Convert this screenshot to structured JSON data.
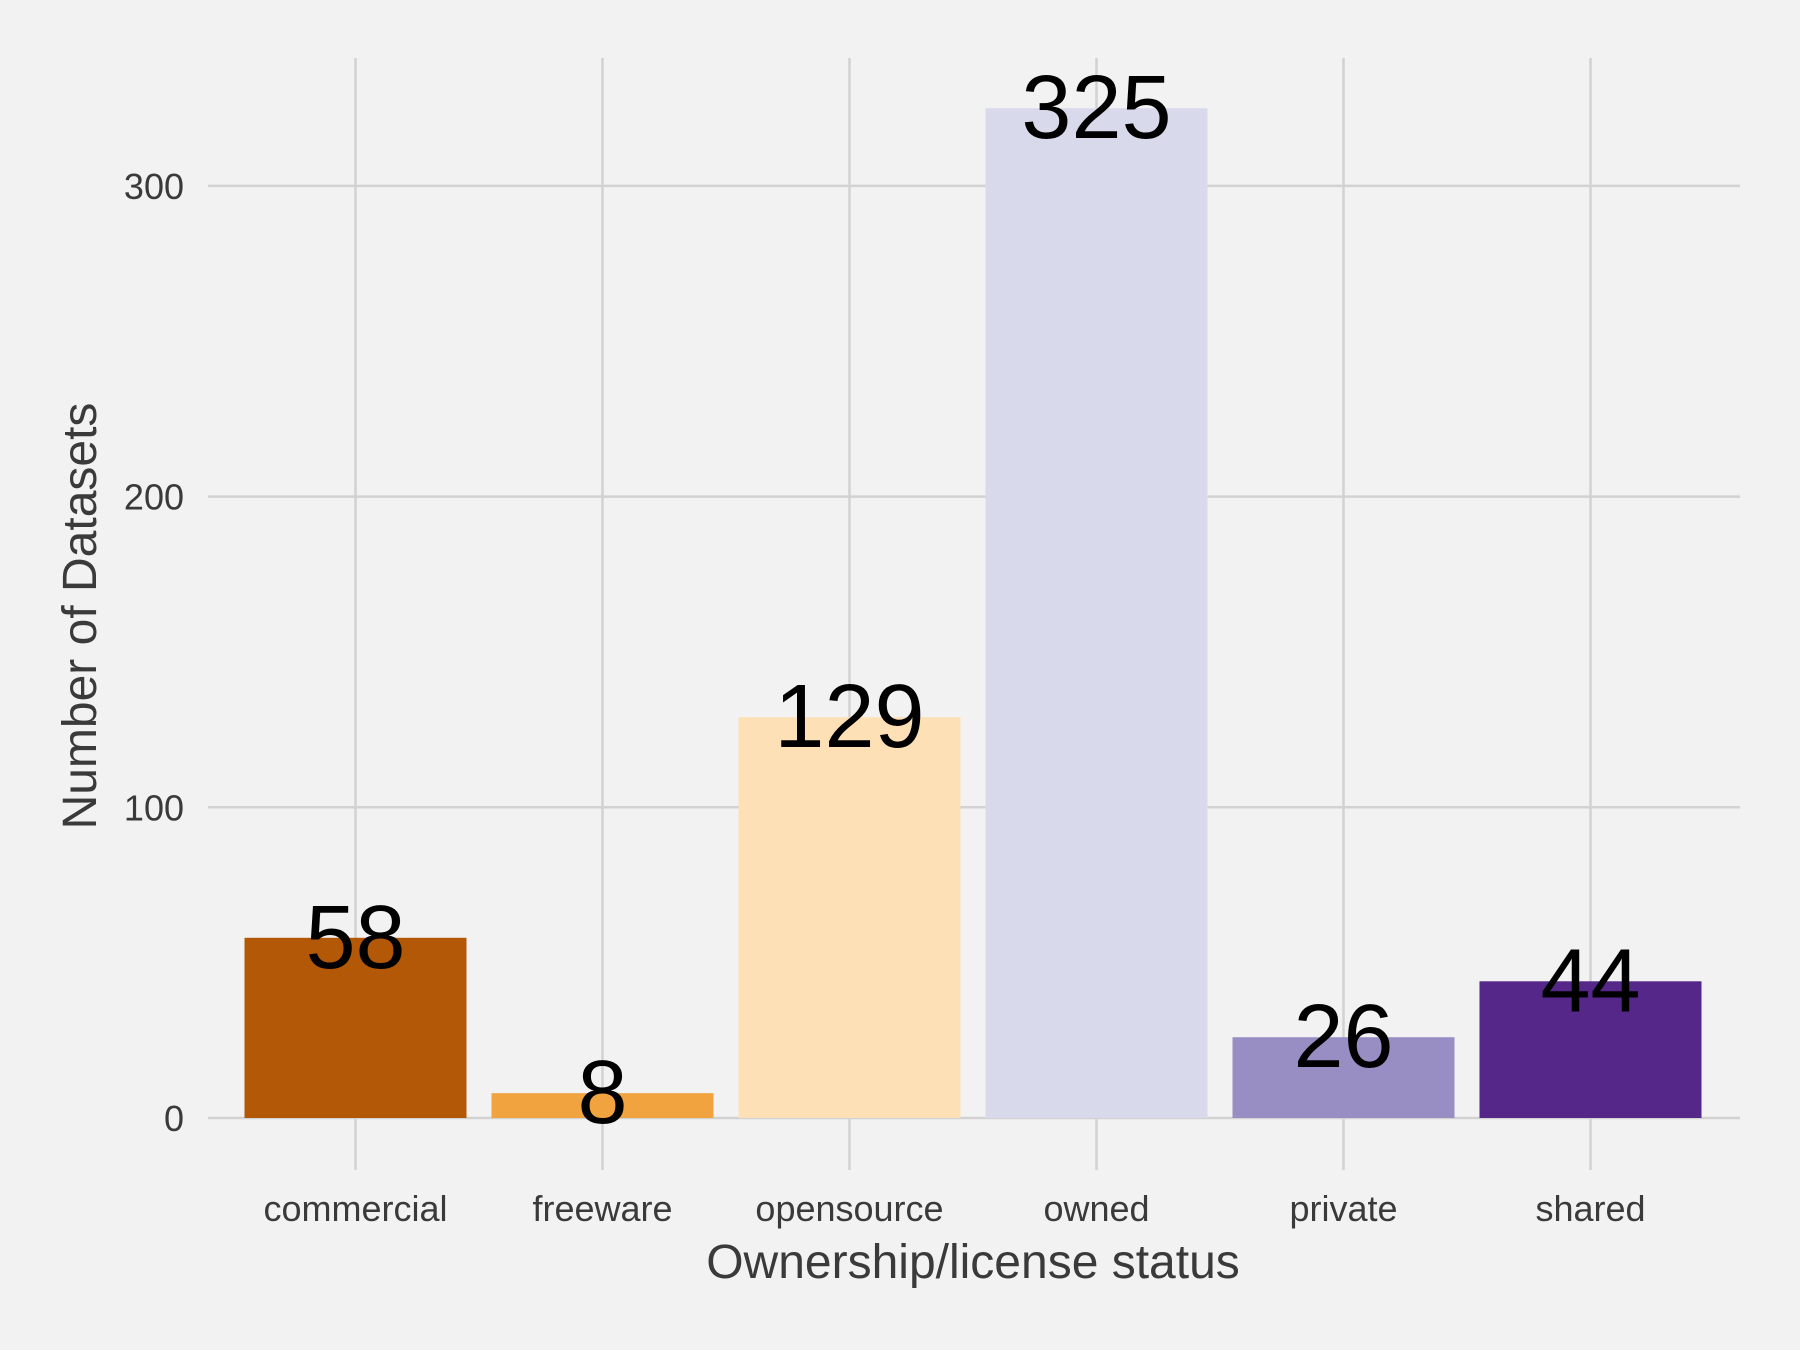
{
  "chart_data": {
    "type": "bar",
    "categories": [
      "commercial",
      "freeware",
      "opensource",
      "owned",
      "private",
      "shared"
    ],
    "values": [
      58,
      8,
      129,
      325,
      26,
      44
    ],
    "data_labels": [
      "58",
      "8",
      "129",
      "325",
      "26",
      "44"
    ],
    "colors": [
      "#b35806",
      "#f1a340",
      "#fee0b6",
      "#d8daeb",
      "#998ec3",
      "#542788"
    ],
    "title": "",
    "xlabel": "Ownership/license status",
    "ylabel": "Number of Datasets",
    "ylim": [
      0,
      340
    ],
    "yticks": [
      0,
      100,
      200,
      300
    ],
    "ytick_labels": [
      "0",
      "100",
      "200",
      "300"
    ],
    "grid": true,
    "legend": "none",
    "background": "#f2f2f2"
  }
}
